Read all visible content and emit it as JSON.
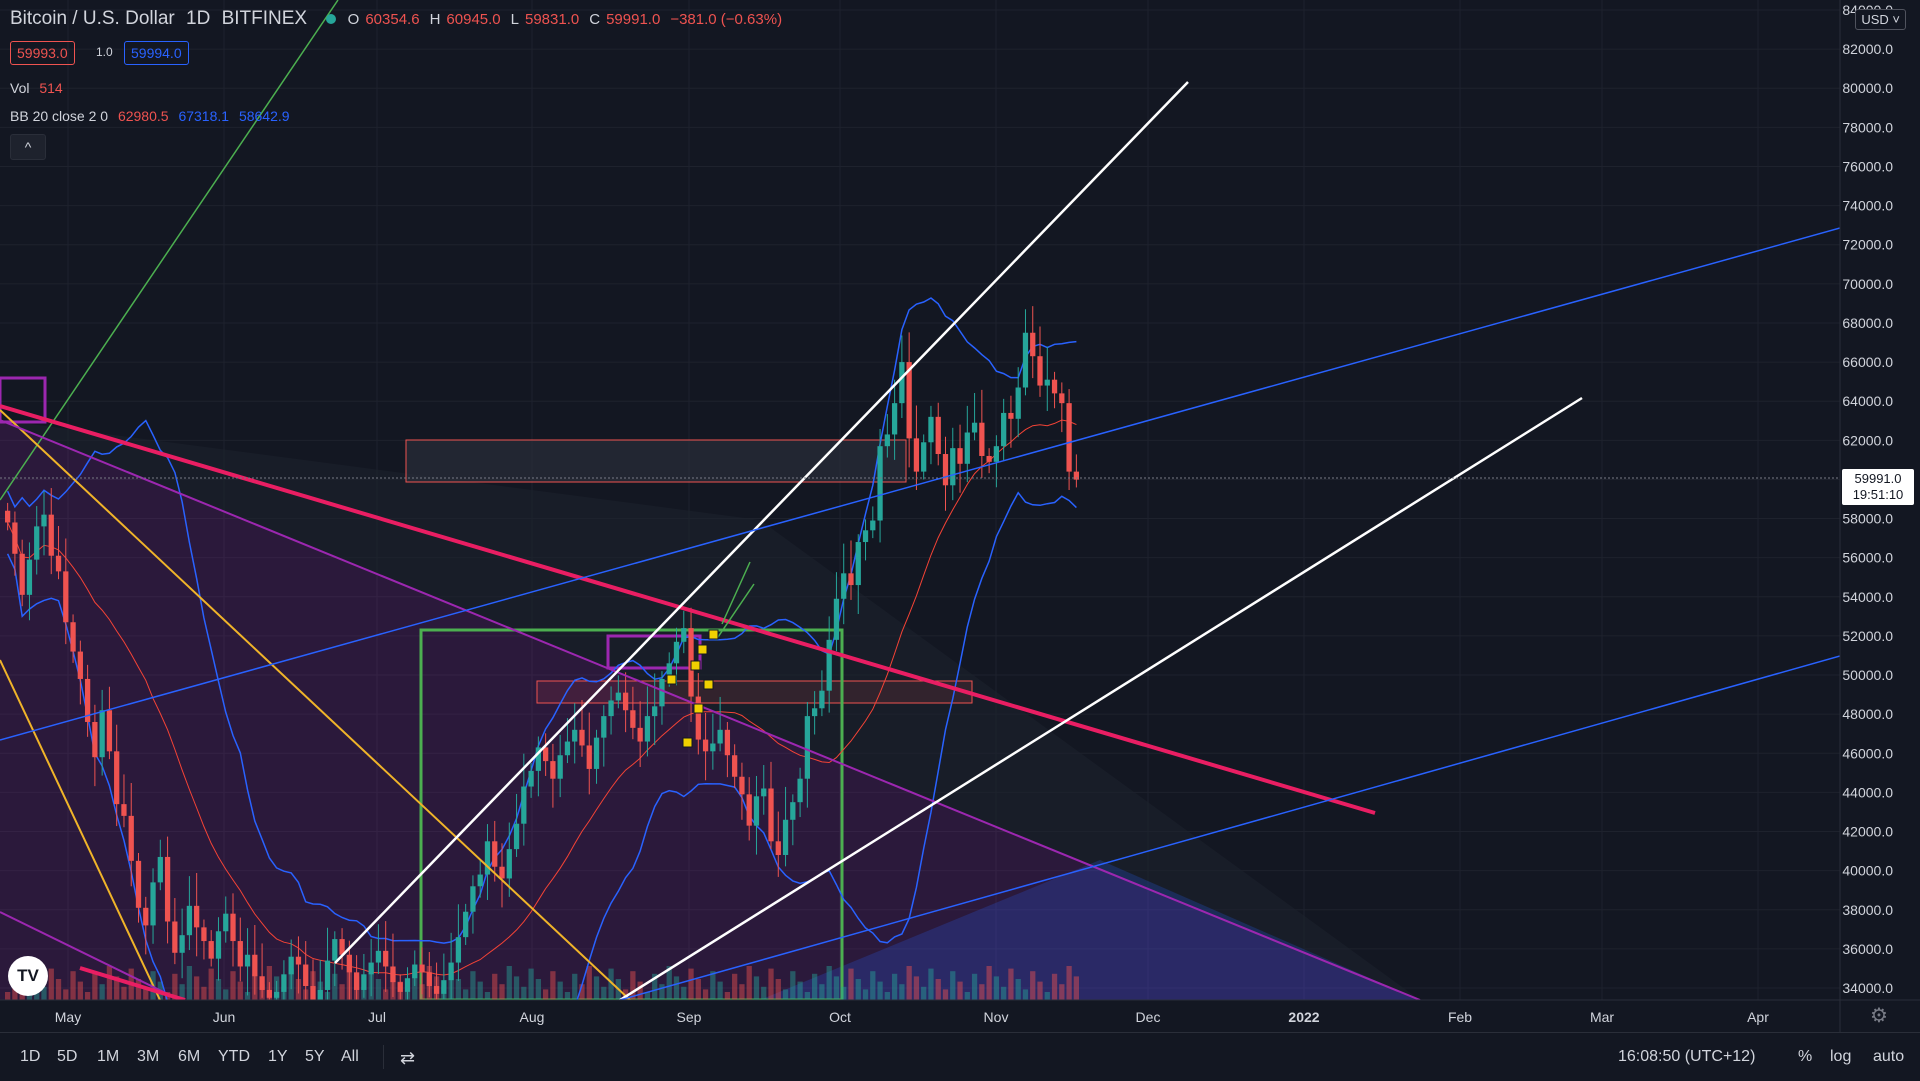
{
  "header": {
    "symbol": "Bitcoin / U.S. Dollar",
    "interval": "1D",
    "exchange": "BITFINEX",
    "open_label": "O",
    "open": "60354.6",
    "high_label": "H",
    "high": "60945.0",
    "low_label": "L",
    "low": "59831.0",
    "close_label": "C",
    "close": "59991.0",
    "change": "−381.0 (−0.63%)",
    "bid": "59993.0",
    "spread": "1.0",
    "ask": "59994.0"
  },
  "indicators": {
    "vol_label": "Vol",
    "vol_value": "514",
    "bb_label": "BB 20 close 2 0",
    "bb_basis": "62980.5",
    "bb_upper": "67318.1",
    "bb_lower": "58642.9",
    "collapse_icon": "^"
  },
  "price_axis": {
    "currency": "USD ˅",
    "ticks": [
      "84000.0",
      "82000.0",
      "80000.0",
      "78000.0",
      "76000.0",
      "74000.0",
      "72000.0",
      "70000.0",
      "68000.0",
      "66000.0",
      "64000.0",
      "62000.0",
      "60000.0",
      "58000.0",
      "56000.0",
      "54000.0",
      "52000.0",
      "50000.0",
      "48000.0",
      "46000.0",
      "44000.0",
      "42000.0",
      "40000.0",
      "38000.0",
      "36000.0",
      "34000.0"
    ],
    "last_price": "59991.0",
    "countdown": "19:51:10"
  },
  "time_axis": {
    "labels": [
      "May",
      "Jun",
      "Jul",
      "Aug",
      "Sep",
      "Oct",
      "Nov",
      "Dec",
      "2022",
      "Feb",
      "Mar",
      "Apr"
    ]
  },
  "bottom_bar": {
    "ranges": [
      "1D",
      "5D",
      "1M",
      "3M",
      "6M",
      "YTD",
      "1Y",
      "5Y",
      "All"
    ],
    "clock": "16:08:50 (UTC+12)",
    "percent": "%",
    "log": "log",
    "auto": "auto"
  },
  "colors": {
    "background": "#131722",
    "up": "#26a69a",
    "down": "#ef5350",
    "bollinger": "#2962ff",
    "basis": "#f44336",
    "trend_pink": "#e91e63",
    "trend_white": "#ffffff",
    "box_green": "#4caf50",
    "box_purple": "#9c27b0"
  },
  "chart_data": {
    "type": "candlestick",
    "symbol": "Bitcoin / U.S. Dollar",
    "interval": "1D",
    "ylim": [
      33000,
      84000
    ],
    "x_labels": [
      "May",
      "Jun",
      "Jul",
      "Aug",
      "Sep",
      "Oct",
      "Nov",
      "Dec",
      "2022",
      "Feb",
      "Mar",
      "Apr"
    ],
    "closes": [
      57800,
      56200,
      54100,
      55900,
      57600,
      58200,
      56100,
      55300,
      52700,
      51200,
      49800,
      47600,
      45800,
      48200,
      46100,
      43400,
      42800,
      40500,
      38100,
      37200,
      39400,
      40700,
      37400,
      35800,
      36700,
      38200,
      37100,
      36400,
      35500,
      36900,
      37800,
      36400,
      35100,
      35700,
      34600,
      33900,
      33500,
      33800,
      34700,
      35600,
      35200,
      34100,
      33200,
      33900,
      35400,
      36500,
      35700,
      34800,
      33900,
      34700,
      35300,
      35900,
      35100,
      34300,
      33800,
      34500,
      35200,
      34800,
      34100,
      33700,
      34400,
      35300,
      36600,
      37900,
      39200,
      39800,
      41500,
      40200,
      39600,
      41100,
      42400,
      44300,
      45100,
      46300,
      45600,
      44700,
      45900,
      46600,
      47200,
      46400,
      45200,
      46800,
      47900,
      48700,
      49100,
      48200,
      47300,
      46600,
      47900,
      48400,
      49800,
      50600,
      51700,
      52400,
      48900,
      46700,
      46100,
      46500,
      47200,
      45900,
      44800,
      43900,
      42300,
      43800,
      44200,
      41500,
      40800,
      42600,
      43500,
      44700,
      47900,
      48300,
      49200,
      51800,
      53900,
      55200,
      54600,
      56800,
      57400,
      57900,
      61700,
      62300,
      63900,
      66000,
      62100,
      60400,
      61900,
      63200,
      61300,
      59700,
      61600,
      60800,
      62400,
      62900,
      61200,
      60900,
      61700,
      63400,
      63100,
      64700,
      67500,
      66300,
      64800,
      65100,
      64400,
      63900,
      60400,
      59991
    ],
    "bollinger_basis": "smoothed (20-period)",
    "legend": {
      "vol": 514,
      "bb_basis": 62980.5,
      "bb_upper": 67318.1,
      "bb_lower": 58642.9
    },
    "last_price": 59991.0,
    "grid": true
  }
}
